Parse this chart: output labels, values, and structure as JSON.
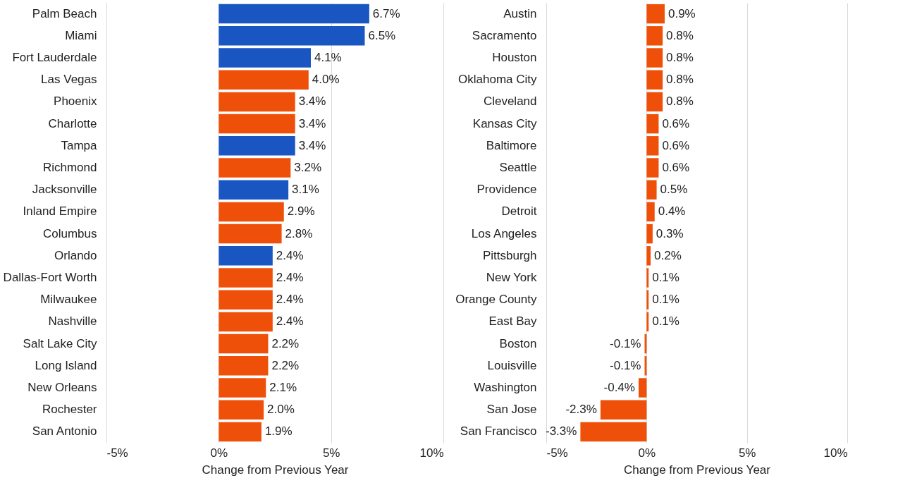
{
  "chart_data": [
    {
      "type": "bar",
      "orientation": "horizontal",
      "xlabel": "Change from Previous Year",
      "grid": "x",
      "categories": [
        "Palm Beach",
        "Miami",
        "Fort Lauderdale",
        "Las Vegas",
        "Phoenix",
        "Charlotte",
        "Tampa",
        "Richmond",
        "Jacksonville",
        "Inland Empire",
        "Columbus",
        "Orlando",
        "Dallas-Fort Worth",
        "Milwaukee",
        "Nashville",
        "Salt Lake City",
        "Long Island",
        "New Orleans",
        "Rochester",
        "San Antonio"
      ],
      "values": [
        6.7,
        6.5,
        4.1,
        4.0,
        3.4,
        3.4,
        3.4,
        3.2,
        3.1,
        2.9,
        2.8,
        2.4,
        2.4,
        2.4,
        2.4,
        2.2,
        2.2,
        2.1,
        2.0,
        1.9
      ],
      "value_labels": [
        "6.7%",
        "6.5%",
        "4.1%",
        "4.0%",
        "3.4%",
        "3.4%",
        "3.4%",
        "3.2%",
        "3.1%",
        "2.9%",
        "2.8%",
        "2.4%",
        "2.4%",
        "2.4%",
        "2.4%",
        "2.2%",
        "2.2%",
        "2.1%",
        "2.0%",
        "1.9%"
      ],
      "colors": [
        "#1a56c2",
        "#1a56c2",
        "#1a56c2",
        "#ef5009",
        "#ef5009",
        "#ef5009",
        "#1a56c2",
        "#ef5009",
        "#1a56c2",
        "#ef5009",
        "#ef5009",
        "#1a56c2",
        "#ef5009",
        "#ef5009",
        "#ef5009",
        "#ef5009",
        "#ef5009",
        "#ef5009",
        "#ef5009",
        "#ef5009"
      ],
      "xlim": [
        -5,
        10
      ],
      "xticks": [
        {
          "value": -5,
          "label": "-5%"
        },
        {
          "value": 0,
          "label": "0%"
        },
        {
          "value": 5,
          "label": "5%"
        },
        {
          "value": 10,
          "label": "10%"
        }
      ]
    },
    {
      "type": "bar",
      "orientation": "horizontal",
      "xlabel": "Change from Previous Year",
      "grid": "x",
      "categories": [
        "Austin",
        "Sacramento",
        "Houston",
        "Oklahoma City",
        "Cleveland",
        "Kansas City",
        "Baltimore",
        "Seattle",
        "Providence",
        "Detroit",
        "Los Angeles",
        "Pittsburgh",
        "New York",
        "Orange County",
        "East Bay",
        "Boston",
        "Louisville",
        "Washington",
        "San Jose",
        "San Francisco"
      ],
      "values": [
        0.9,
        0.8,
        0.8,
        0.8,
        0.8,
        0.6,
        0.6,
        0.6,
        0.5,
        0.4,
        0.3,
        0.2,
        0.1,
        0.1,
        0.1,
        -0.1,
        -0.1,
        -0.4,
        -2.3,
        -3.3
      ],
      "value_labels": [
        "0.9%",
        "0.8%",
        "0.8%",
        "0.8%",
        "0.8%",
        "0.6%",
        "0.6%",
        "0.6%",
        "0.5%",
        "0.4%",
        "0.3%",
        "0.2%",
        "0.1%",
        "0.1%",
        "0.1%",
        "-0.1%",
        "-0.1%",
        "-0.4%",
        "-2.3%",
        "-3.3%"
      ],
      "colors": [
        "#ef5009",
        "#ef5009",
        "#ef5009",
        "#ef5009",
        "#ef5009",
        "#ef5009",
        "#ef5009",
        "#ef5009",
        "#ef5009",
        "#ef5009",
        "#ef5009",
        "#ef5009",
        "#ef5009",
        "#ef5009",
        "#ef5009",
        "#ef5009",
        "#ef5009",
        "#ef5009",
        "#ef5009",
        "#ef5009"
      ],
      "xlim": [
        -5,
        10
      ],
      "xticks": [
        {
          "value": -5,
          "label": "-5%"
        },
        {
          "value": 0,
          "label": "0%"
        },
        {
          "value": 5,
          "label": "5%"
        },
        {
          "value": 10,
          "label": "10%"
        }
      ]
    }
  ]
}
